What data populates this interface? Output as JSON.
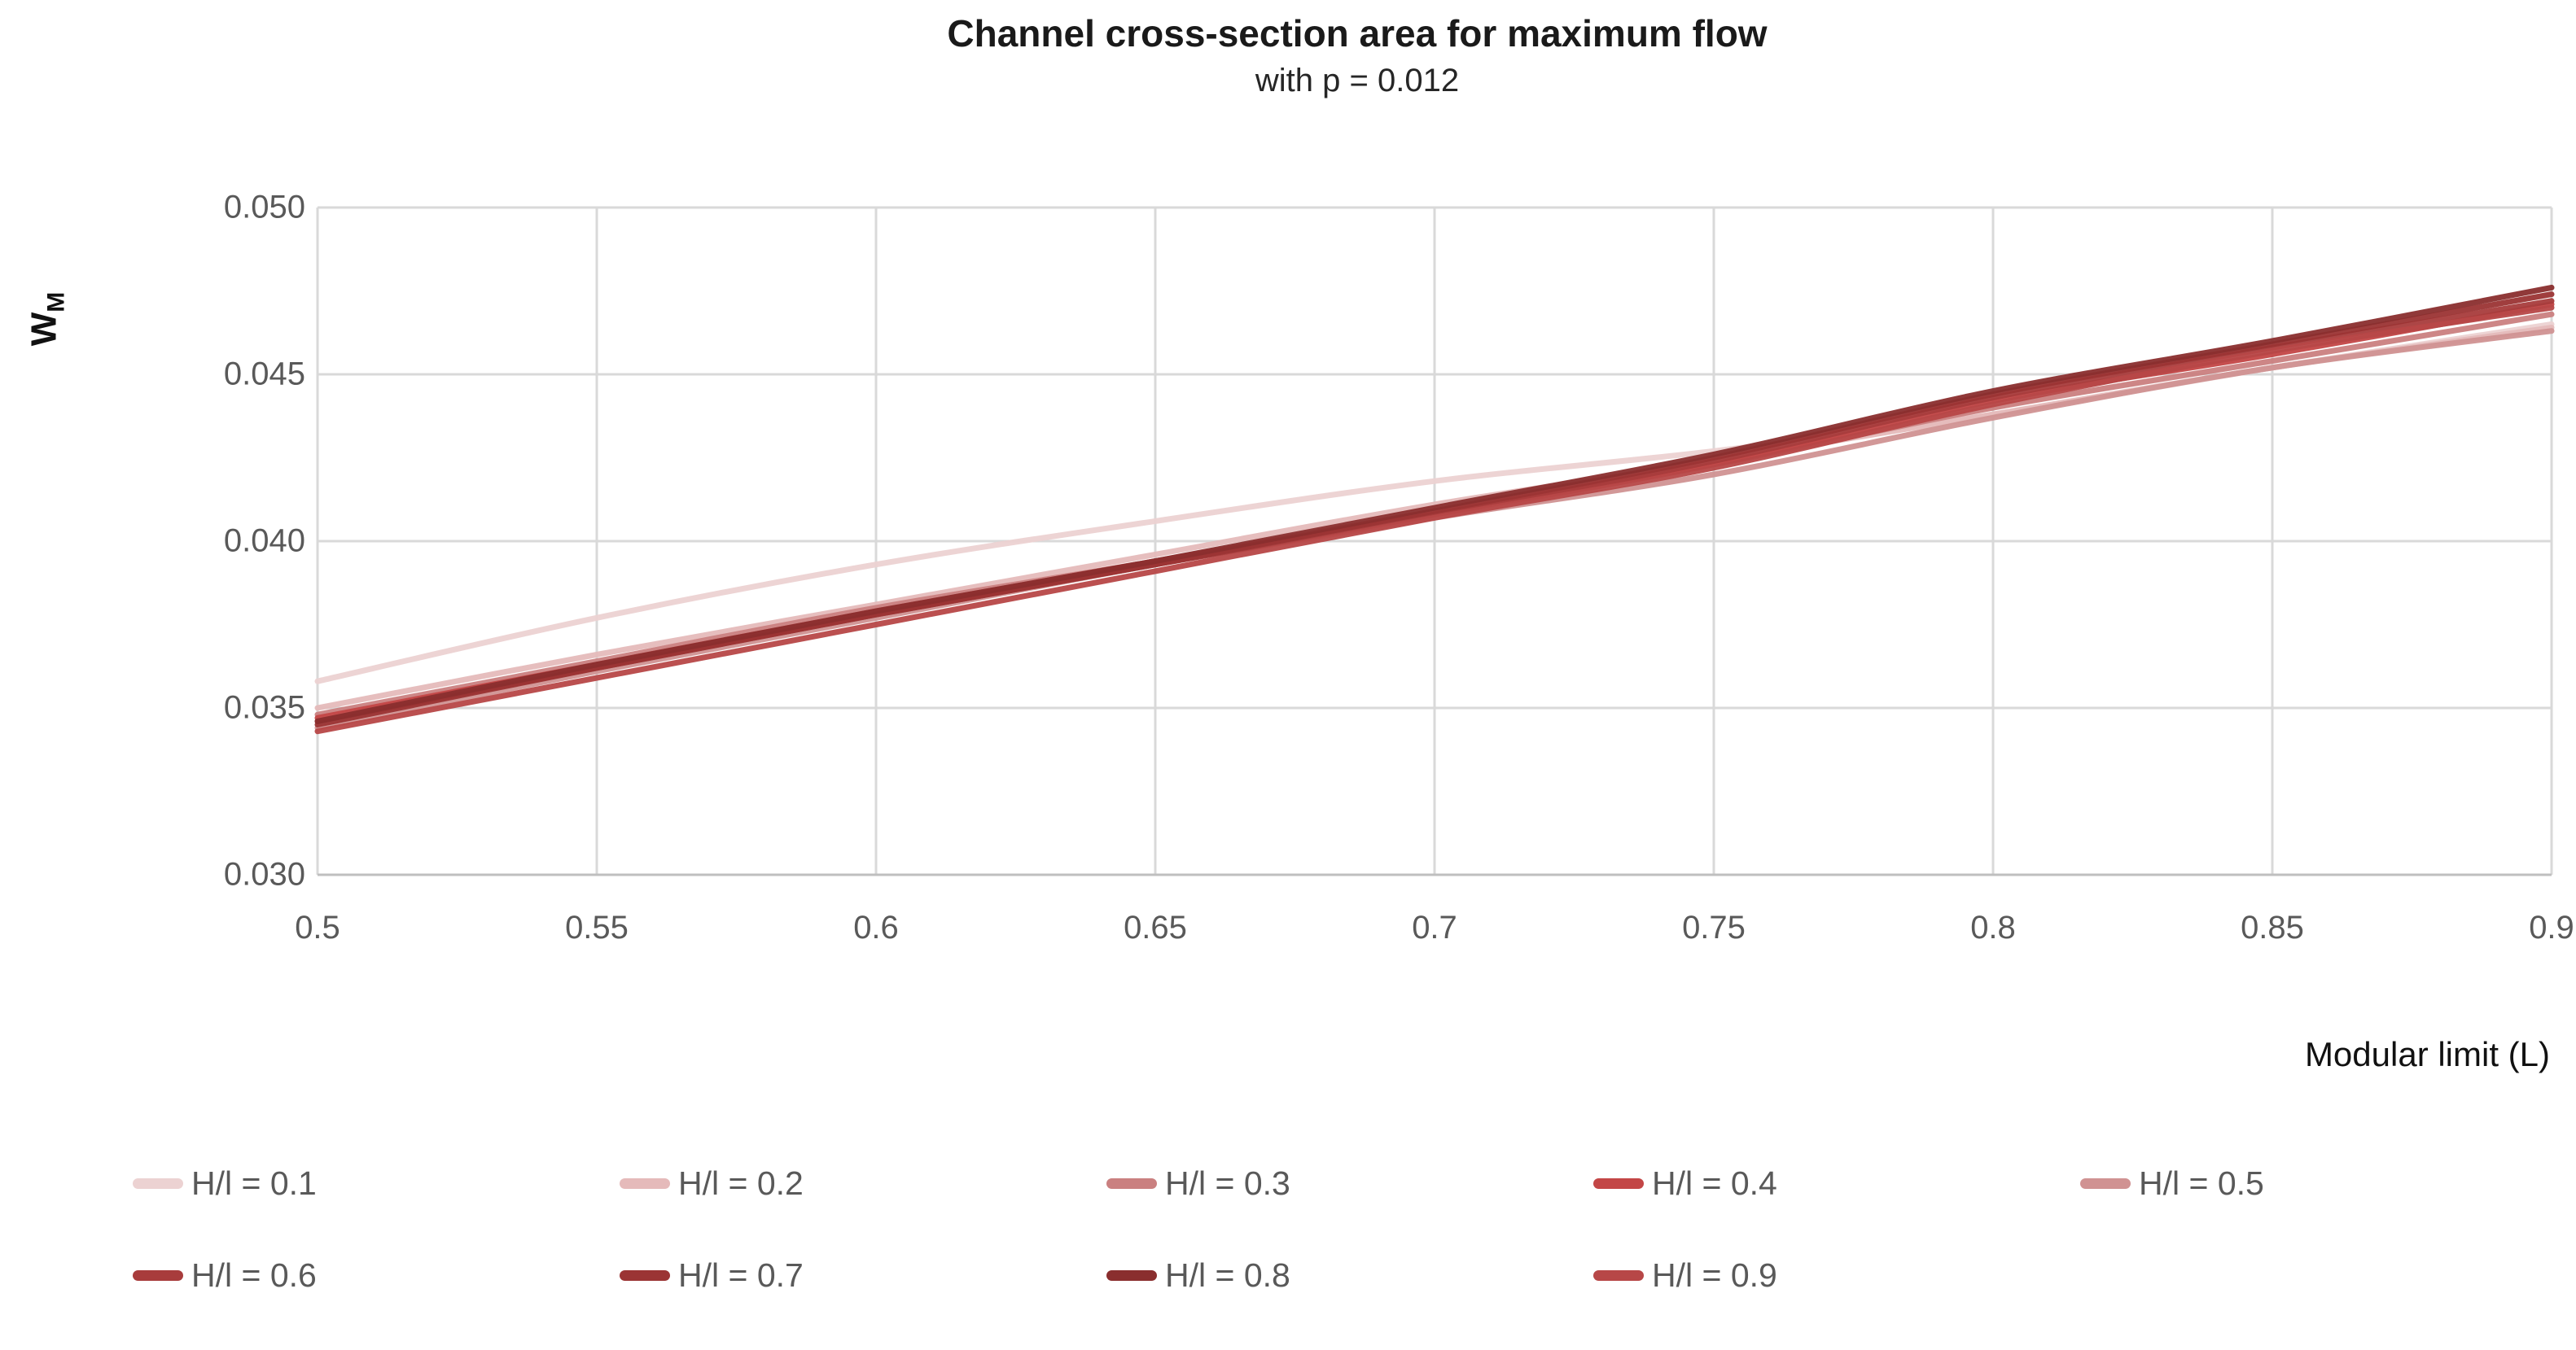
{
  "chart_data": {
    "type": "line",
    "title": "Channel cross-section area for maximum flow",
    "subtitle": "with p = 0.012",
    "xlabel": "Modular limit (L)",
    "ylabel_main": "W",
    "ylabel_sub": "M",
    "xlim": [
      0.5,
      0.9
    ],
    "ylim": [
      0.03,
      0.05
    ],
    "grid": true,
    "legend_position": "bottom",
    "x_tick_values": [
      0.5,
      0.55,
      0.6,
      0.65,
      0.7,
      0.75,
      0.8,
      0.85,
      0.9
    ],
    "x_tick_labels": [
      "0.5",
      "0.55",
      "0.6",
      "0.65",
      "0.7",
      "0.75",
      "0.8",
      "0.85",
      "0.9"
    ],
    "y_tick_values": [
      0.05,
      0.045,
      0.04,
      0.035,
      0.03
    ],
    "y_tick_labels": [
      "0.050",
      "0.045",
      "0.040",
      "0.035",
      "0.030"
    ],
    "x": [
      0.5,
      0.55,
      0.6,
      0.65,
      0.7,
      0.75,
      0.8,
      0.85,
      0.9
    ],
    "series": [
      {
        "name": "H/l = 0.1",
        "color": "#ecd2d2",
        "values": [
          0.0358,
          0.0377,
          0.0393,
          0.0406,
          0.0418,
          0.0427,
          0.0438,
          0.0452,
          0.0465
        ]
      },
      {
        "name": "H/l = 0.2",
        "color": "#e5baba",
        "values": [
          0.035,
          0.0366,
          0.0381,
          0.0396,
          0.0411,
          0.0424,
          0.0438,
          0.0452,
          0.0464
        ]
      },
      {
        "name": "H/l = 0.3",
        "color": "#ca8080",
        "values": [
          0.0348,
          0.0364,
          0.038,
          0.0394,
          0.0409,
          0.0423,
          0.044,
          0.0454,
          0.0468
        ]
      },
      {
        "name": "H/l = 0.4",
        "color": "#c34646",
        "values": [
          0.0347,
          0.0363,
          0.0379,
          0.0394,
          0.0408,
          0.0423,
          0.0442,
          0.0456,
          0.0471
        ]
      },
      {
        "name": "H/l = 0.5",
        "color": "#d09292",
        "values": [
          0.0344,
          0.0361,
          0.0377,
          0.0393,
          0.0407,
          0.042,
          0.0437,
          0.0452,
          0.0463
        ]
      },
      {
        "name": "H/l = 0.6",
        "color": "#a83c3c",
        "values": [
          0.0346,
          0.0362,
          0.0378,
          0.0393,
          0.0408,
          0.0424,
          0.0443,
          0.0458,
          0.0472
        ]
      },
      {
        "name": "H/l = 0.7",
        "color": "#9b3434",
        "values": [
          0.0345,
          0.0362,
          0.0378,
          0.0393,
          0.0409,
          0.0425,
          0.0444,
          0.0459,
          0.0474
        ]
      },
      {
        "name": "H/l = 0.8",
        "color": "#8a2e2e",
        "values": [
          0.0346,
          0.0363,
          0.0379,
          0.0394,
          0.041,
          0.0426,
          0.0445,
          0.046,
          0.0476
        ]
      },
      {
        "name": "H/l = 0.9",
        "color": "#b74747",
        "values": [
          0.0343,
          0.0359,
          0.0375,
          0.0391,
          0.0407,
          0.0422,
          0.0441,
          0.0457,
          0.047
        ]
      }
    ],
    "colors": {
      "gridline": "#d9d9d9",
      "axis_line": "#bfbfbf",
      "tick_text": "#595959",
      "title_text": "#1a1a1a"
    }
  }
}
